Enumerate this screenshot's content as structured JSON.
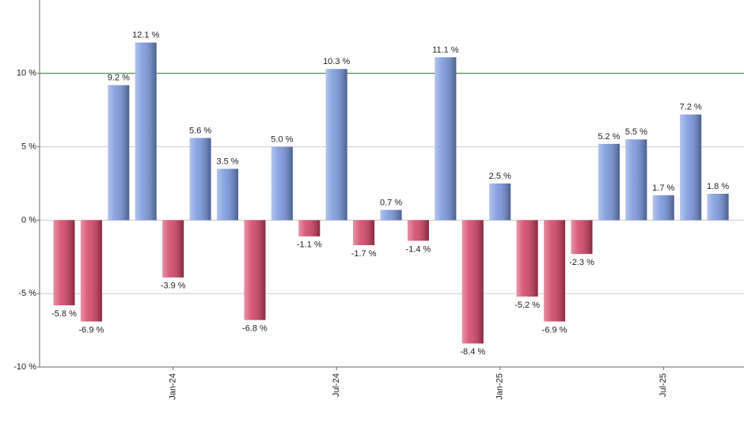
{
  "chart_data": {
    "type": "bar",
    "categories": [
      null,
      null,
      null,
      null,
      "Jan-24",
      null,
      null,
      null,
      null,
      null,
      "Jul-24",
      null,
      null,
      null,
      null,
      null,
      "Jan-25",
      null,
      null,
      null,
      null,
      null,
      "Jul-25",
      null,
      null
    ],
    "values": [
      -5.8,
      -6.9,
      9.2,
      12.1,
      -3.9,
      5.6,
      3.5,
      -6.8,
      5.0,
      -1.1,
      10.3,
      -1.7,
      0.7,
      -1.4,
      11.1,
      -8.4,
      2.5,
      -5.2,
      -6.9,
      -2.3,
      5.2,
      5.5,
      1.7,
      7.2,
      1.8
    ],
    "value_labels": [
      "-5.8 %",
      "-6.9 %",
      "9.2 %",
      "12.1 %",
      "-3.9 %",
      "5.6 %",
      "3.5 %",
      "-6.8 %",
      "5.0 %",
      "-1.1 %",
      "10.3 %",
      "-1.7 %",
      "0.7 %",
      "-1.4 %",
      "11.1 %",
      "-8.4 %",
      "2.5 %",
      "-5.2 %",
      "-6.9 %",
      "-2.3 %",
      "5.2 %",
      "5.5 %",
      "1.7 %",
      "7.2 %",
      "1.8 %"
    ],
    "positive_color": "#7393dc",
    "negative_color": "#d23c5f",
    "ylim": [
      -10,
      15
    ],
    "yticks": [
      {
        "value": -10,
        "label": "-10 %"
      },
      {
        "value": -5,
        "label": "-5 %"
      },
      {
        "value": 0,
        "label": "0 %"
      },
      {
        "value": 5,
        "label": "5 %"
      },
      {
        "value": 10,
        "label": "10 %"
      }
    ],
    "grid": true,
    "reference_line": 10,
    "reference_color": "#2e7d32"
  }
}
